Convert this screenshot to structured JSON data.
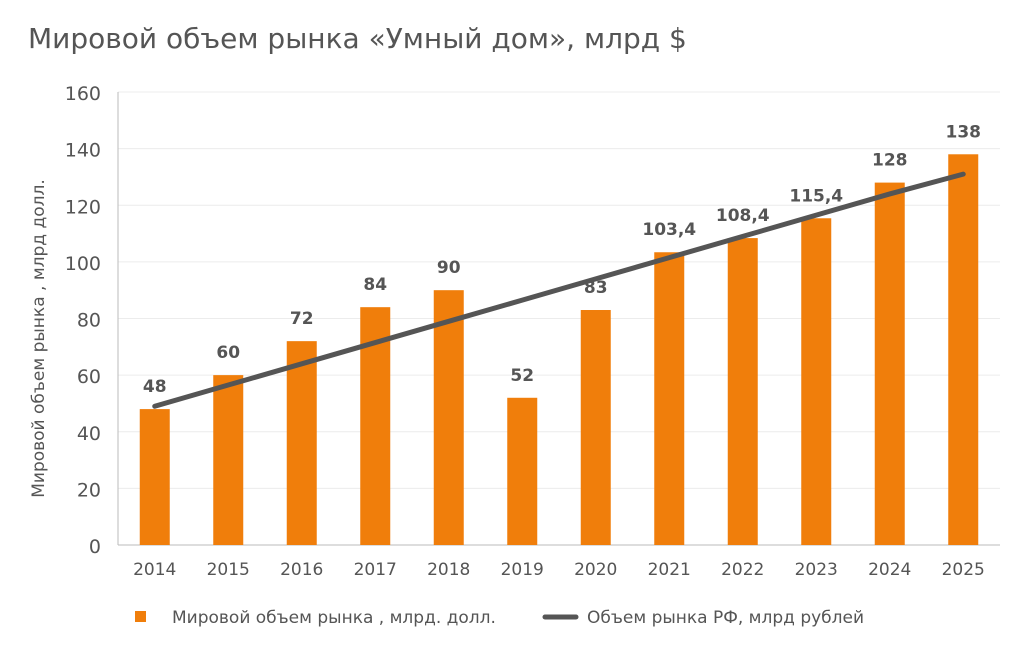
{
  "chart_data": {
    "type": "bar",
    "title": "Мировой объем рынка «Умный дом», млрд $",
    "xlabel": "",
    "ylabel": "Мировой объем рынка , млрд долл.",
    "ylim": [
      0,
      160
    ],
    "yticks": [
      0,
      20,
      40,
      60,
      80,
      100,
      120,
      140,
      160
    ],
    "categories": [
      "2014",
      "2015",
      "2016",
      "2017",
      "2018",
      "2019",
      "2020",
      "2021",
      "2022",
      "2023",
      "2024",
      "2025"
    ],
    "series": [
      {
        "name": "Мировой объем рынка , млрд. долл.",
        "type": "bar",
        "color": "#F07E0B",
        "values": [
          48,
          60,
          72,
          84,
          90,
          52,
          83,
          103.4,
          108.4,
          115.4,
          128,
          138
        ],
        "labels": [
          "48",
          "60",
          "72",
          "84",
          "90",
          "52",
          "83",
          "103,4",
          "108,4",
          "115,4",
          "128",
          "138"
        ]
      },
      {
        "name": "Объем рынка РФ, млрд рублей",
        "type": "line",
        "color": "#555555",
        "values": [
          49,
          56.5,
          64,
          71.5,
          79,
          86.5,
          94,
          101.5,
          109,
          116.5,
          124,
          131
        ]
      }
    ],
    "grid": true,
    "legend_position": "bottom"
  }
}
